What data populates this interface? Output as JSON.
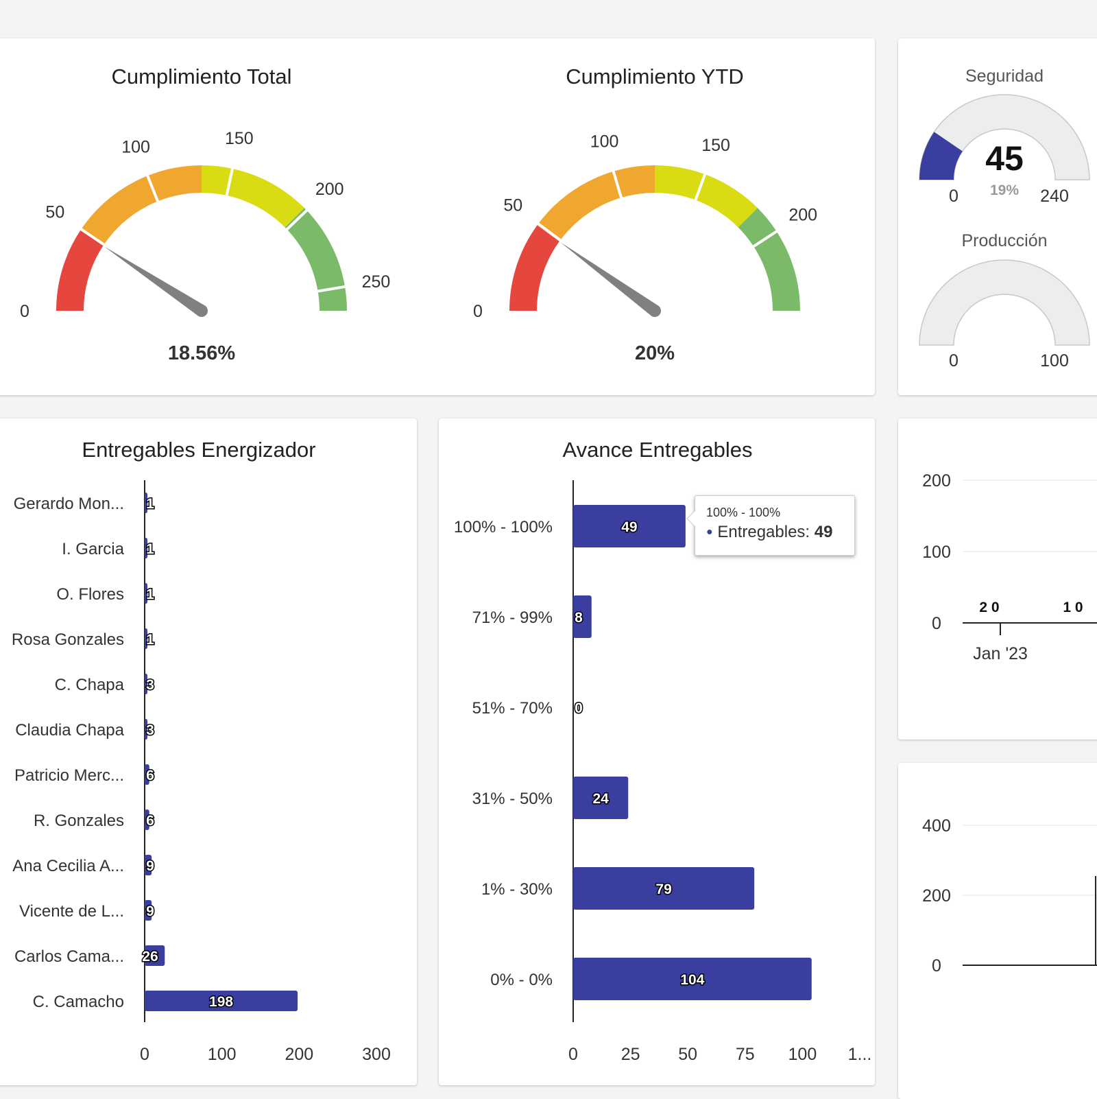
{
  "gauges": [
    {
      "title": "Cumplimiento Total",
      "value_label": "18.56%",
      "max": 264,
      "needle_value": 49,
      "ticks": [
        "0",
        "50",
        "100",
        "150",
        "200",
        "250"
      ],
      "bands": [
        {
          "from": 0,
          "to": 50,
          "color": "#e5473f"
        },
        {
          "from": 50,
          "to": 132,
          "color": "#f0a72f"
        },
        {
          "from": 132,
          "to": 198,
          "color": "#d9dc12"
        },
        {
          "from": 198,
          "to": 264,
          "color": "#7aba68"
        }
      ]
    },
    {
      "title": "Cumplimiento YTD",
      "value_label": "20%",
      "max": 245,
      "needle_value": 49,
      "ticks": [
        "0",
        "50",
        "100",
        "150",
        "200"
      ],
      "bands": [
        {
          "from": 0,
          "to": 49,
          "color": "#e5473f"
        },
        {
          "from": 49,
          "to": 122.5,
          "color": "#f0a72f"
        },
        {
          "from": 122.5,
          "to": 183.75,
          "color": "#d9dc12"
        },
        {
          "from": 183.75,
          "to": 245,
          "color": "#7aba68"
        }
      ]
    }
  ],
  "small_gauges": [
    {
      "title": "Seguridad",
      "value": "45",
      "percent": "19%",
      "min": "0",
      "max": "240",
      "fraction": 0.19,
      "fill_color": "#3a3f9f"
    },
    {
      "title": "Producción",
      "value": "",
      "percent": "",
      "min": "0",
      "max": "100",
      "fraction": 0,
      "fill_color": "#3a3f9f"
    }
  ],
  "chart_data": [
    {
      "type": "bar",
      "orientation": "horizontal",
      "title": "Entregables Energizador",
      "categories": [
        "Gerardo Mon...",
        "I. Garcia",
        "O. Flores",
        "Rosa Gonzales",
        "C. Chapa",
        "Claudia Chapa",
        "Patricio Merc...",
        "R. Gonzales",
        "Ana Cecilia A...",
        "Vicente de L...",
        "Carlos Cama...",
        "C. Camacho"
      ],
      "values": [
        1,
        1,
        1,
        1,
        3,
        3,
        6,
        6,
        9,
        9,
        26,
        198
      ],
      "xlim": [
        0,
        300
      ],
      "xticks": [
        "0",
        "100",
        "200",
        "300"
      ],
      "color": "#3a3f9f"
    },
    {
      "type": "bar",
      "orientation": "horizontal",
      "title": "Avance Entregables",
      "categories": [
        "100% - 100%",
        "71% - 99%",
        "51% - 70%",
        "31% - 50%",
        "1% - 30%",
        "0% - 0%"
      ],
      "values": [
        49,
        8,
        0,
        24,
        79,
        104
      ],
      "xlim": [
        0,
        125
      ],
      "xticks": [
        "0",
        "25",
        "50",
        "75",
        "100",
        "1..."
      ],
      "series_name": "Entregables",
      "color": "#3a3f9f"
    },
    {
      "type": "line",
      "title": "",
      "yticks": [
        "200",
        "100",
        "0"
      ],
      "ylim": [
        0,
        200
      ],
      "x_label": "Jan '23",
      "data_labels": [
        "2 0",
        "1 0"
      ]
    },
    {
      "type": "line",
      "title": "",
      "yticks": [
        "400",
        "200",
        "0"
      ],
      "ylim": [
        0,
        400
      ]
    }
  ],
  "tooltip": {
    "header": "100% - 100%",
    "series": "Entregables:",
    "value": "49"
  }
}
